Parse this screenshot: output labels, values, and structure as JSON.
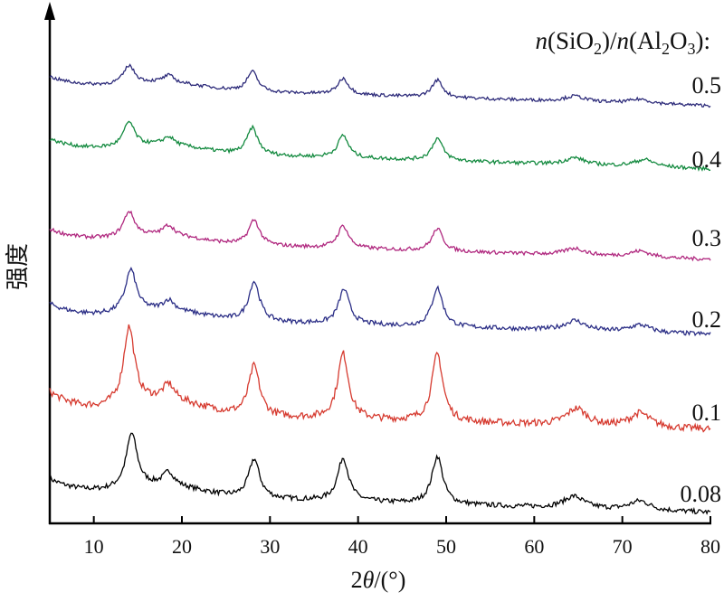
{
  "chart_data": {
    "type": "line",
    "xlabel_prefix": "2",
    "xlabel_theta": "θ",
    "xlabel_suffix": "/(°)",
    "ylabel": "强度",
    "legend_title": {
      "n1": "n",
      "open1": "(SiO",
      "sub1": "2",
      "mid": ")/",
      "n2": "n",
      "open2": "(Al",
      "sub2a": "2",
      "o": "O",
      "sub2b": "3",
      "close": "):"
    },
    "xlim": [
      5,
      80
    ],
    "xticks": [
      10,
      20,
      30,
      40,
      50,
      60,
      70,
      80
    ],
    "xtick_labels": [
      "10",
      "20",
      "30",
      "40",
      "50",
      "60",
      "70",
      "80"
    ],
    "y_ticks": "none",
    "grid": false,
    "series": [
      {
        "name": "0.08",
        "color": "#000000",
        "peaks": [
          [
            14.3,
            1.0
          ],
          [
            18.5,
            0.25
          ],
          [
            28.2,
            0.72
          ],
          [
            38.3,
            0.8
          ],
          [
            49.0,
            0.88
          ],
          [
            64.5,
            0.22
          ],
          [
            72.0,
            0.17
          ]
        ],
        "baseline": 0.3
      },
      {
        "name": "0.1",
        "color": "#d63a2f",
        "peaks": [
          [
            14.0,
            1.0
          ],
          [
            18.5,
            0.2
          ],
          [
            28.2,
            0.65
          ],
          [
            38.3,
            0.85
          ],
          [
            49.0,
            0.88
          ],
          [
            64.8,
            0.22
          ],
          [
            72.0,
            0.18
          ]
        ],
        "baseline": 0.3
      },
      {
        "name": "0.2",
        "color": "#2b2e86",
        "peaks": [
          [
            14.2,
            0.85
          ],
          [
            18.5,
            0.2
          ],
          [
            28.2,
            0.8
          ],
          [
            38.4,
            0.7
          ],
          [
            49.0,
            0.78
          ],
          [
            64.6,
            0.2
          ],
          [
            72.0,
            0.15
          ]
        ],
        "baseline": 0.3
      },
      {
        "name": "0.3",
        "color": "#b0287f",
        "peaks": [
          [
            14.0,
            0.62
          ],
          [
            18.5,
            0.25
          ],
          [
            28.2,
            0.62
          ],
          [
            38.3,
            0.55
          ],
          [
            49.0,
            0.55
          ],
          [
            64.6,
            0.17
          ],
          [
            72.0,
            0.15
          ]
        ],
        "baseline": 0.35
      },
      {
        "name": "0.4",
        "color": "#138a3f",
        "peaks": [
          [
            14.0,
            0.6
          ],
          [
            18.5,
            0.2
          ],
          [
            28.0,
            0.66
          ],
          [
            38.3,
            0.55
          ],
          [
            49.0,
            0.55
          ],
          [
            64.6,
            0.17
          ],
          [
            72.5,
            0.18
          ]
        ],
        "baseline": 0.35
      },
      {
        "name": "0.5",
        "color": "#2d2b7a",
        "peaks": [
          [
            14.0,
            0.5
          ],
          [
            18.5,
            0.2
          ],
          [
            28.0,
            0.55
          ],
          [
            38.3,
            0.45
          ],
          [
            49.0,
            0.48
          ],
          [
            64.6,
            0.15
          ],
          [
            72.0,
            0.12
          ]
        ],
        "baseline": 0.4
      }
    ]
  }
}
